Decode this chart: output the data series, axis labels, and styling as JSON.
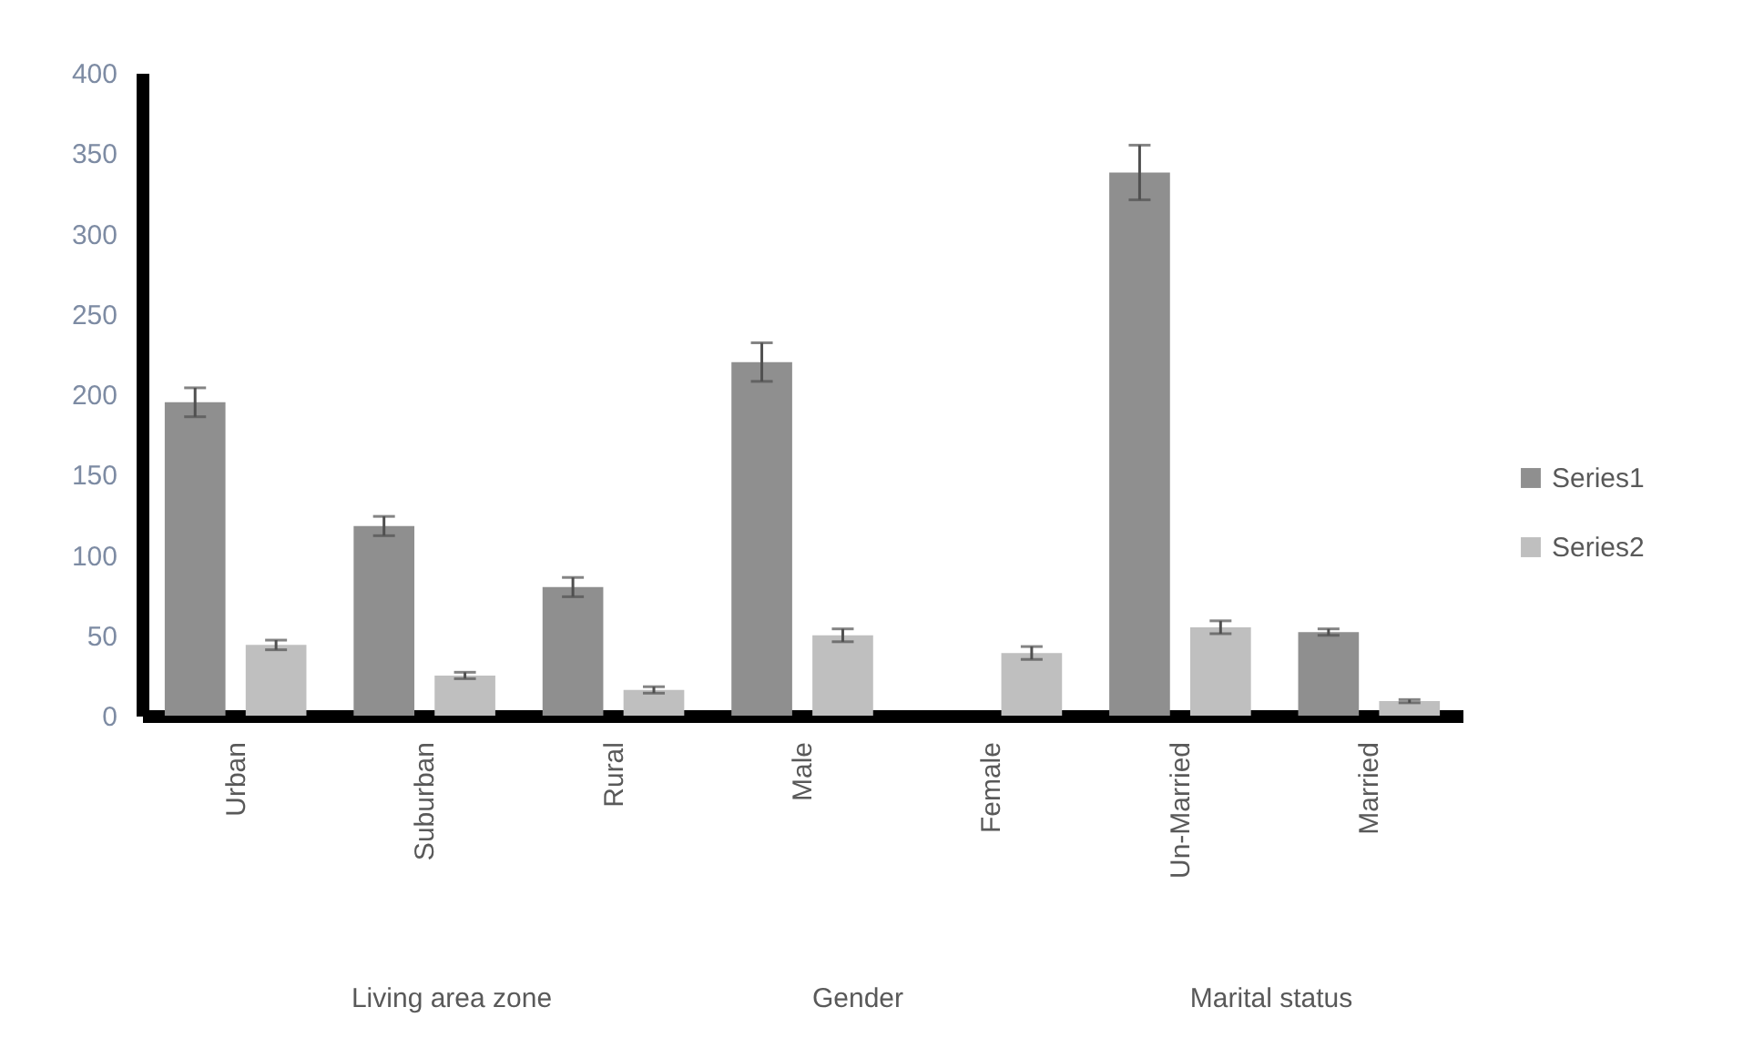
{
  "chart_data": {
    "type": "bar",
    "categories": [
      "Urban",
      "Suburban",
      "Rural",
      "Male",
      "Female",
      "Un-Married",
      "Married"
    ],
    "series": [
      {
        "name": "Series1",
        "color": "#8f8f8f",
        "values": [
          195,
          118,
          80,
          220,
          null,
          338,
          52
        ],
        "errors": [
          9,
          6,
          6,
          12,
          null,
          17,
          2
        ]
      },
      {
        "name": "Series2",
        "color": "#bfbfbf",
        "values": [
          44,
          25,
          16,
          50,
          39,
          55,
          9
        ],
        "errors": [
          3,
          2,
          2,
          4,
          4,
          4,
          1
        ]
      }
    ],
    "ylim": [
      0,
      400
    ],
    "yticks": [
      0,
      50,
      100,
      150,
      200,
      250,
      300,
      350,
      400
    ],
    "legend": "right",
    "annotations": [
      "Living area zone",
      "Gender",
      "Marital status"
    ]
  }
}
